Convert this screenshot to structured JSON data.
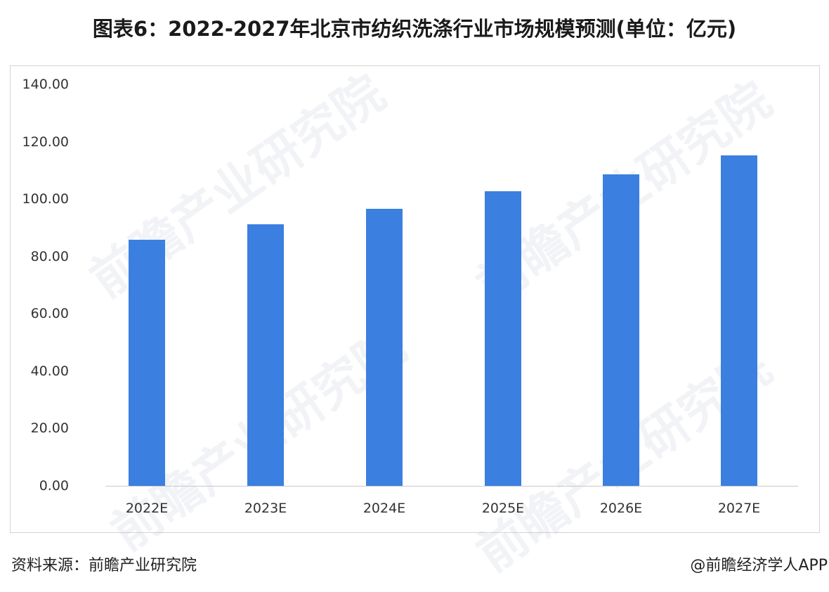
{
  "title": "图表6：2022-2027年北京市纺织洗涤行业市场规模预测(单位：亿元)",
  "footer": {
    "source": "资料来源：前瞻产业研究院",
    "credit": "@前瞻经济学人APP"
  },
  "watermark": "前瞻产业研究院",
  "colors": {
    "bar": "#3b7fe0",
    "axis": "#c9c9c9",
    "frame": "#d4d4d4"
  },
  "chart_data": {
    "type": "bar",
    "title": "图表6：2022-2027年北京市纺织洗涤行业市场规模预测(单位：亿元)",
    "xlabel": "",
    "ylabel": "",
    "unit": "亿元",
    "categories": [
      "2022E",
      "2023E",
      "2024E",
      "2025E",
      "2026E",
      "2027E"
    ],
    "values": [
      85.9,
      91.3,
      96.7,
      102.8,
      108.5,
      115.3
    ],
    "ylim": [
      0,
      140
    ],
    "yticks": [
      "0.00",
      "20.00",
      "40.00",
      "60.00",
      "80.00",
      "100.00",
      "120.00",
      "140.00"
    ],
    "grid": false,
    "legend": null
  }
}
